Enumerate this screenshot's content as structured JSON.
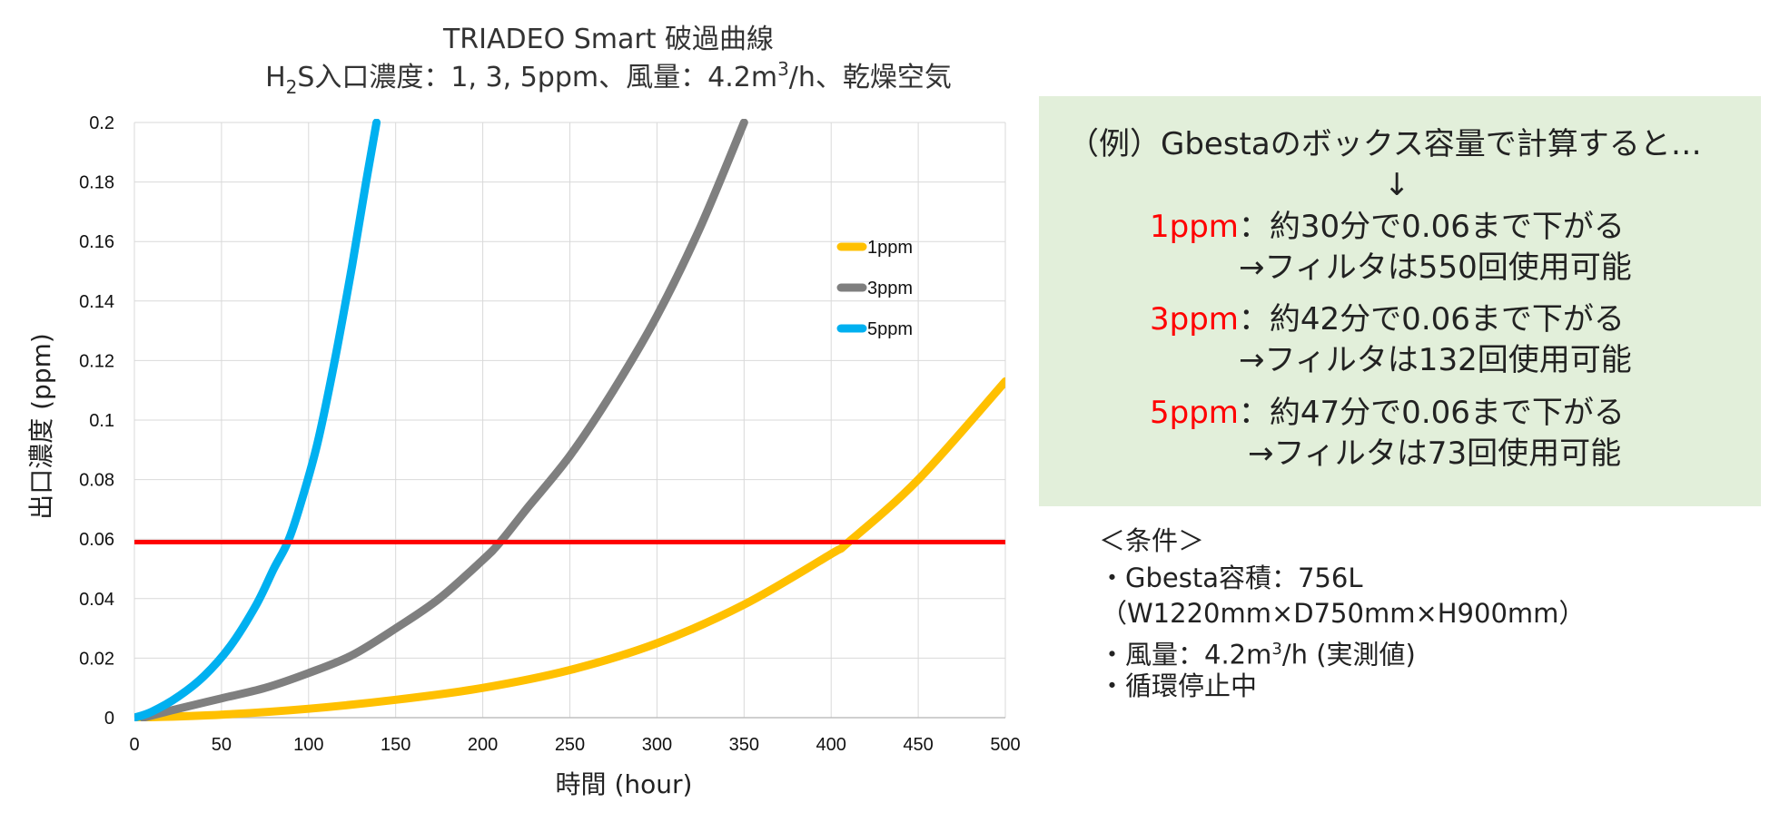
{
  "chart_data": {
    "type": "line",
    "title": "TRIADEO Smart 破過曲線",
    "subtitle": {
      "prefix": "H",
      "sub": "2",
      "main": "S入口濃度：1, 3, 5ppm、風量：4.2m",
      "sup": "3",
      "suffix": "/h、乾燥空気"
    },
    "xlabel": "時間 (hour)",
    "ylabel": "出口濃度 (ppm)",
    "xlim": [
      0,
      500
    ],
    "ylim": [
      0,
      0.2
    ],
    "xticks": [
      "0",
      "50",
      "100",
      "150",
      "200",
      "250",
      "300",
      "350",
      "400",
      "450",
      "500"
    ],
    "yticks": [
      "0",
      "0.02",
      "0.04",
      "0.06",
      "0.08",
      "0.1",
      "0.12",
      "0.14",
      "0.16",
      "0.18",
      "0.2"
    ],
    "grid": true,
    "legend_position": "right-upper-inside",
    "threshold": {
      "value": 0.059,
      "color": "#ff0000"
    },
    "series": [
      {
        "name": "1ppm",
        "color": "#ffc000",
        "x": [
          0,
          50,
          100,
          150,
          200,
          250,
          300,
          350,
          400,
          410,
          450,
          500
        ],
        "y": [
          0,
          0.001,
          0.003,
          0.006,
          0.01,
          0.016,
          0.025,
          0.038,
          0.055,
          0.059,
          0.08,
          0.113
        ]
      },
      {
        "name": "3ppm",
        "color": "#7f7f7f",
        "x": [
          5,
          25,
          50,
          75,
          100,
          125,
          150,
          175,
          200,
          210,
          225,
          250,
          275,
          300,
          325,
          350
        ],
        "y": [
          0,
          0.003,
          0.0065,
          0.01,
          0.015,
          0.021,
          0.03,
          0.04,
          0.053,
          0.059,
          0.07,
          0.088,
          0.11,
          0.135,
          0.165,
          0.2
        ]
      },
      {
        "name": "5ppm",
        "color": "#00b0f0",
        "x": [
          0,
          10,
          25,
          40,
          55,
          70,
          80,
          88,
          95,
          105,
          115,
          125,
          133,
          139
        ],
        "y": [
          0,
          0.002,
          0.007,
          0.014,
          0.024,
          0.038,
          0.05,
          0.059,
          0.071,
          0.092,
          0.12,
          0.152,
          0.18,
          0.2
        ]
      }
    ]
  },
  "example_box": {
    "header": "（例）Gbestaのボックス容量で計算すると…",
    "arrow": "↓",
    "rows": [
      {
        "ppm": "1ppm",
        "reach": "：約30分で0.06まで下がる",
        "usage": "→フィルタは550回使用可能"
      },
      {
        "ppm": "3ppm",
        "reach": "：約42分で0.06まで下がる",
        "usage": "→フィルタは132回使用可能"
      },
      {
        "ppm": "5ppm",
        "reach": "：約47分で0.06まで下がる",
        "usage": "→フィルタは73回使用可能"
      }
    ]
  },
  "conditions": {
    "header": "＜条件＞",
    "volume": "・Gbesta容積：756L",
    "dims": "（W1220mm×D750mm×H900mm）",
    "airflow_prefix": "・風量：4.2m",
    "airflow_sup": "3",
    "airflow_suffix": "/h (実測値)",
    "circulation": "・循環停止中"
  }
}
